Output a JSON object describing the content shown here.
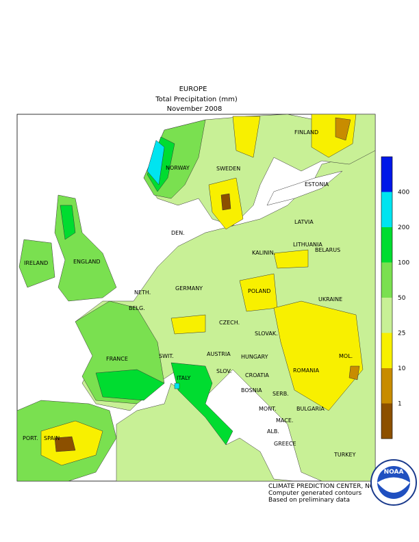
{
  "header": {
    "lines": [
      "EUROPE",
      "Total Precipitation (mm)",
      "November 2008"
    ]
  },
  "map": {
    "labels": [
      "FINLAND",
      "NORWAY",
      "SWEDEN",
      "ESTONIA",
      "LATVIA",
      "DEN.",
      "LITHUANIA",
      "KALININ.",
      "IRELAND",
      "ENGLAND",
      "BELARUS",
      "NETH.",
      "GERMANY",
      "POLAND",
      "BELG.",
      "UKRAINE",
      "CZECH.",
      "SLOVAK.",
      "FRANCE",
      "SWIT.",
      "AUSTRIA",
      "HUNGARY",
      "MOL.",
      "SLOV.",
      "CROATIA",
      "ROMANIA",
      "ITALY",
      "BOSNIA",
      "SERB.",
      "BULGARIA",
      "MONT.",
      "MACE.",
      "PORT.",
      "SPAIN",
      "ALB.",
      "GREECE",
      "TURKEY"
    ]
  },
  "legend": {
    "items": [
      {
        "label": "400",
        "color": "#0018e8"
      },
      {
        "label": "200",
        "color": "#00e4f0"
      },
      {
        "label": "100",
        "color": "#00dc30"
      },
      {
        "label": "50",
        "color": "#7ae050"
      },
      {
        "label": "25",
        "color": "#c8f096"
      },
      {
        "label": "10",
        "color": "#f8f000"
      },
      {
        "label": "1",
        "color": "#c88c00"
      }
    ],
    "bottom_color": "#8c5000"
  },
  "footer": {
    "lines": [
      "CLIMATE PREDICTION CENTER, NOAA",
      "Computer generated contours",
      "Based on preliminary data"
    ]
  },
  "logo": {
    "text": "NOAA"
  }
}
